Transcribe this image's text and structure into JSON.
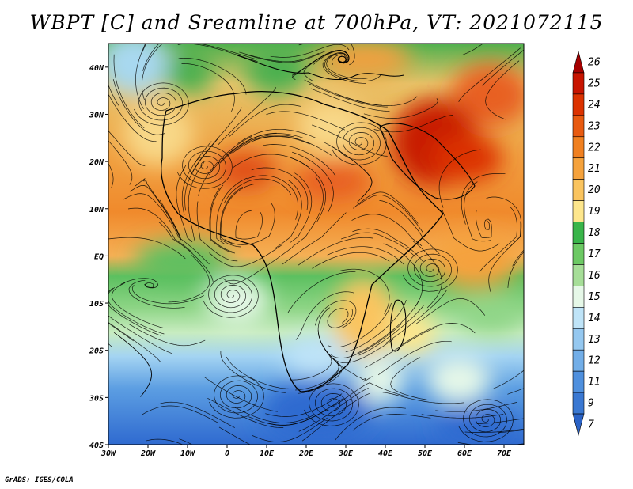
{
  "title": "WBPT [C] and Sreamline at 700hPa, VT: 2021072115",
  "footer": "GrADS: IGES/COLA",
  "map": {
    "lon_range": [
      -30,
      75
    ],
    "lat_range": [
      -40,
      45
    ],
    "lat_ticks": [
      {
        "lat": 40,
        "label": "40N"
      },
      {
        "lat": 30,
        "label": "30N"
      },
      {
        "lat": 20,
        "label": "20N"
      },
      {
        "lat": 10,
        "label": "10N"
      },
      {
        "lat": 0,
        "label": "EQ"
      },
      {
        "lat": -10,
        "label": "10S"
      },
      {
        "lat": -20,
        "label": "20S"
      },
      {
        "lat": -30,
        "label": "30S"
      },
      {
        "lat": -40,
        "label": "40S"
      }
    ],
    "lon_ticks": [
      {
        "lon": -30,
        "label": "30W"
      },
      {
        "lon": -20,
        "label": "20W"
      },
      {
        "lon": -10,
        "label": "10W"
      },
      {
        "lon": 0,
        "label": "0"
      },
      {
        "lon": 10,
        "label": "10E"
      },
      {
        "lon": 20,
        "label": "20E"
      },
      {
        "lon": 30,
        "label": "30E"
      },
      {
        "lon": 40,
        "label": "40E"
      },
      {
        "lon": 50,
        "label": "50E"
      },
      {
        "lon": 60,
        "label": "60E"
      },
      {
        "lon": 70,
        "label": "70E"
      }
    ]
  },
  "colorbar": {
    "labels": [
      "26",
      "25",
      "24",
      "23",
      "22",
      "21",
      "20",
      "19",
      "18",
      "17",
      "16",
      "15",
      "14",
      "13",
      "12",
      "11",
      "9",
      "7"
    ],
    "colors": [
      "#a50000",
      "#c81400",
      "#dc3200",
      "#e85a10",
      "#f08020",
      "#f5a23c",
      "#fac45f",
      "#fde68c",
      "#39b54a",
      "#6cc964",
      "#a6de98",
      "#e6f8e8",
      "#bfe4f8",
      "#95c8f0",
      "#72aee8",
      "#4f90de",
      "#3a78d2",
      "#2a62c6"
    ]
  }
}
